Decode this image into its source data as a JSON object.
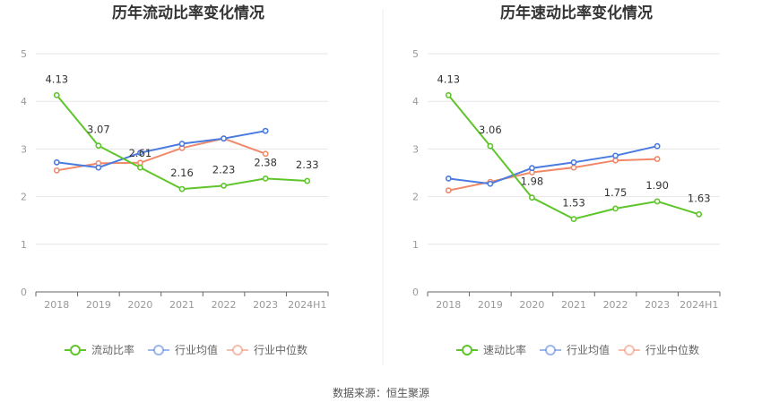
{
  "source_text": "数据来源：恒生聚源",
  "colors": {
    "company": "#5ec52a",
    "industry_avg": "#4a7be0",
    "industry_median": "#f0896a",
    "grid": "#e6e6e6",
    "axis": "#666666"
  },
  "chart_data": [
    {
      "type": "line",
      "title": "历年流动比率变化情况",
      "categories": [
        "2018",
        "2019",
        "2020",
        "2021",
        "2022",
        "2023",
        "2024H1"
      ],
      "ylim": [
        0,
        5
      ],
      "yticks": [
        0,
        1,
        2,
        3,
        4,
        5
      ],
      "grid": true,
      "legend_position": "bottom",
      "series": [
        {
          "name": "流动比率",
          "values": [
            4.13,
            3.07,
            2.61,
            2.16,
            2.23,
            2.38,
            2.33
          ],
          "labels": [
            "4.13",
            "3.07",
            "2.61",
            "2.16",
            "2.23",
            "2.38",
            "2.33"
          ]
        },
        {
          "name": "行业均值",
          "values": [
            2.72,
            2.61,
            2.92,
            3.11,
            3.22,
            3.38,
            null
          ]
        },
        {
          "name": "行业中位数",
          "values": [
            2.55,
            2.7,
            2.71,
            3.02,
            3.22,
            2.9,
            null
          ]
        }
      ]
    },
    {
      "type": "line",
      "title": "历年速动比率变化情况",
      "categories": [
        "2018",
        "2019",
        "2020",
        "2021",
        "2022",
        "2023",
        "2024H1"
      ],
      "ylim": [
        0,
        5
      ],
      "yticks": [
        0,
        1,
        2,
        3,
        4,
        5
      ],
      "grid": true,
      "legend_position": "bottom",
      "series": [
        {
          "name": "速动比率",
          "values": [
            4.13,
            3.06,
            1.98,
            1.53,
            1.75,
            1.9,
            1.63
          ],
          "labels": [
            "4.13",
            "3.06",
            "1.98",
            "1.53",
            "1.75",
            "1.90",
            "1.63"
          ]
        },
        {
          "name": "行业均值",
          "values": [
            2.38,
            2.27,
            2.6,
            2.72,
            2.86,
            3.06,
            null
          ]
        },
        {
          "name": "行业中位数",
          "values": [
            2.13,
            2.31,
            2.51,
            2.61,
            2.76,
            2.79,
            null
          ]
        }
      ]
    }
  ]
}
